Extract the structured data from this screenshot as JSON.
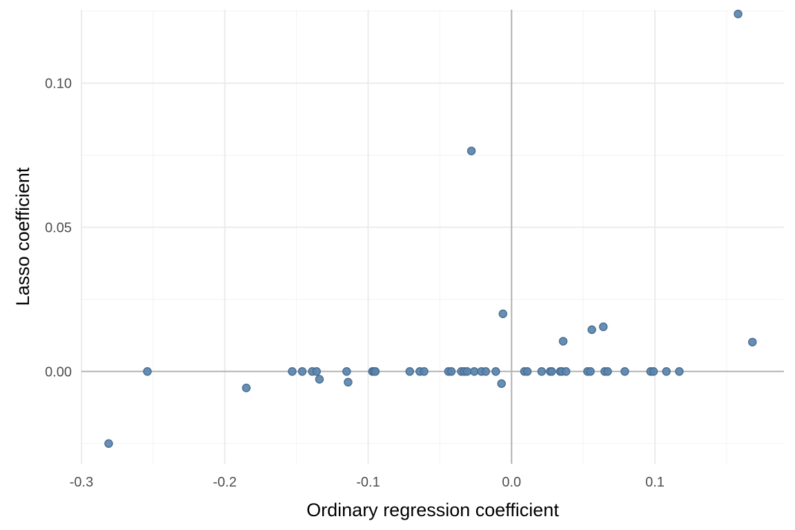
{
  "chart_data": {
    "type": "scatter",
    "title": "",
    "xlabel": "Ordinary regression coefficient",
    "ylabel": "Lasso coefficient",
    "xlim": [
      -0.3,
      0.19
    ],
    "ylim": [
      -0.032,
      0.1255
    ],
    "x_ticks": [
      -0.3,
      -0.2,
      -0.1,
      0.0,
      0.1
    ],
    "x_tick_labels": [
      "-0.3",
      "-0.2",
      "-0.1",
      "0.0",
      "0.1"
    ],
    "y_ticks": [
      0.0,
      0.05,
      0.1
    ],
    "y_tick_labels": [
      "0.00",
      "0.05",
      "0.10"
    ],
    "grid": true,
    "reference_lines": {
      "x": 0,
      "y": 0
    },
    "point_color": "#5b84ad",
    "point_edge_color": "#4a6f93",
    "series": [
      {
        "points": [
          {
            "x": -0.281,
            "y": -0.025
          },
          {
            "x": -0.254,
            "y": 0.0
          },
          {
            "x": -0.185,
            "y": -0.0057
          },
          {
            "x": -0.153,
            "y": 0.0
          },
          {
            "x": -0.146,
            "y": 0.0
          },
          {
            "x": -0.139,
            "y": 0.0
          },
          {
            "x": -0.136,
            "y": 0.0
          },
          {
            "x": -0.134,
            "y": -0.0027
          },
          {
            "x": -0.115,
            "y": 0.0
          },
          {
            "x": -0.114,
            "y": -0.0037
          },
          {
            "x": -0.097,
            "y": 0.0
          },
          {
            "x": -0.096,
            "y": 0.0
          },
          {
            "x": -0.095,
            "y": 0.0
          },
          {
            "x": -0.071,
            "y": 0.0
          },
          {
            "x": -0.064,
            "y": 0.0
          },
          {
            "x": -0.061,
            "y": 0.0
          },
          {
            "x": -0.044,
            "y": 0.0
          },
          {
            "x": -0.042,
            "y": 0.0
          },
          {
            "x": -0.035,
            "y": 0.0
          },
          {
            "x": -0.033,
            "y": 0.0
          },
          {
            "x": -0.031,
            "y": 0.0
          },
          {
            "x": -0.028,
            "y": 0.0765
          },
          {
            "x": -0.026,
            "y": 0.0
          },
          {
            "x": -0.021,
            "y": 0.0
          },
          {
            "x": -0.018,
            "y": 0.0
          },
          {
            "x": -0.011,
            "y": 0.0
          },
          {
            "x": -0.007,
            "y": -0.0042
          },
          {
            "x": -0.006,
            "y": 0.02
          },
          {
            "x": 0.009,
            "y": 0.0
          },
          {
            "x": 0.011,
            "y": 0.0
          },
          {
            "x": 0.021,
            "y": 0.0
          },
          {
            "x": 0.027,
            "y": 0.0
          },
          {
            "x": 0.028,
            "y": 0.0
          },
          {
            "x": 0.034,
            "y": 0.0
          },
          {
            "x": 0.035,
            "y": 0.0
          },
          {
            "x": 0.036,
            "y": 0.0105
          },
          {
            "x": 0.038,
            "y": 0.0
          },
          {
            "x": 0.053,
            "y": 0.0
          },
          {
            "x": 0.055,
            "y": 0.0
          },
          {
            "x": 0.056,
            "y": 0.0145
          },
          {
            "x": 0.064,
            "y": 0.0155
          },
          {
            "x": 0.065,
            "y": 0.0
          },
          {
            "x": 0.067,
            "y": 0.0
          },
          {
            "x": 0.079,
            "y": 0.0
          },
          {
            "x": 0.097,
            "y": 0.0
          },
          {
            "x": 0.099,
            "y": 0.0
          },
          {
            "x": 0.108,
            "y": 0.0
          },
          {
            "x": 0.117,
            "y": 0.0
          },
          {
            "x": 0.158,
            "y": 0.124
          },
          {
            "x": 0.168,
            "y": 0.0102
          }
        ]
      }
    ]
  }
}
